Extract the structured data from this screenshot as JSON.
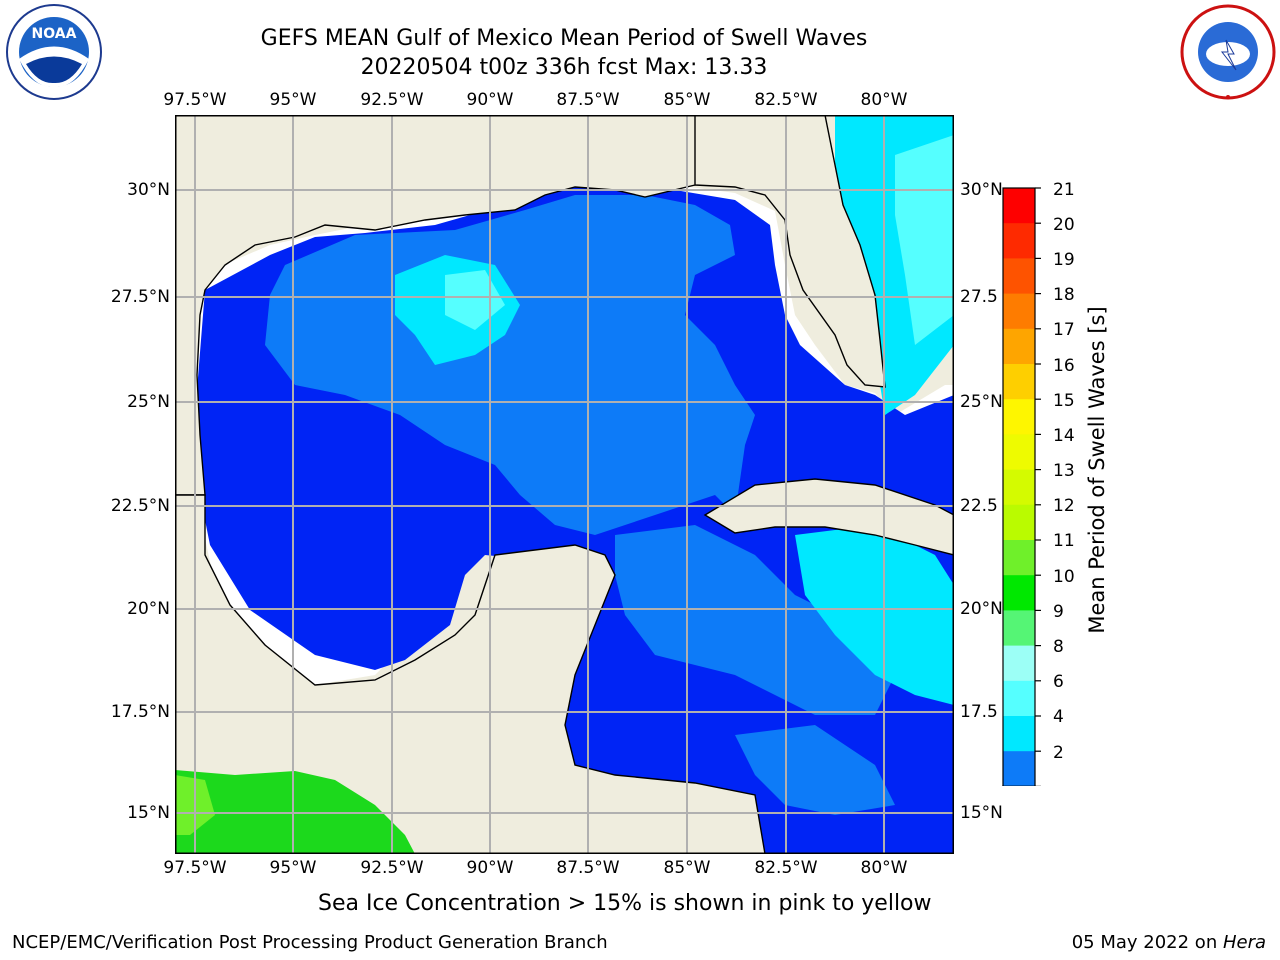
{
  "header": {
    "title_line1": "GEFS MEAN Gulf of Mexico Mean Period of Swell Waves",
    "title_line2": "20220504 t00z 336h fcst   Max: 13.33"
  },
  "logos": {
    "left": {
      "name": "noaa-logo",
      "text": "NOAA",
      "ring_text": "NATIONAL OCEANIC AND ATMOSPHERIC ADMINISTRATION · U.S. DEPARTMENT OF COMMERCE"
    },
    "right": {
      "name": "nws-logo",
      "ring_text": "NATIONAL WEATHER SERVICE"
    }
  },
  "map": {
    "x_tick_labels": [
      "97.5°W",
      "95°W",
      "92.5°W",
      "90°W",
      "87.5°W",
      "85°W",
      "82.5°W",
      "80°W"
    ],
    "y_tick_labels_left": [
      "30°N",
      "27.5°N",
      "25°N",
      "22.5°N",
      "20°N",
      "17.5°N",
      "15°N"
    ],
    "y_tick_labels_right": [
      "30°N",
      "27.5",
      "25°N",
      "22.5",
      "20°N",
      "17.5",
      "15°N"
    ],
    "colors": {
      "land": "#efedde",
      "ocean_low": "#0024f5",
      "ocean_mid": "#0d7bf8",
      "ocean_high": "#00e8ff",
      "ocean_vhigh": "#55ffff",
      "pacific": "#1cd91c",
      "grid": "#b0b0b0"
    }
  },
  "colorbar": {
    "label": "Mean Period of Swell Waves [s]",
    "tick_labels": [
      "21",
      "20",
      "19",
      "18",
      "17",
      "16",
      "15",
      "14",
      "13",
      "12",
      "11",
      "10",
      "9",
      "8",
      "6",
      "4",
      "2"
    ],
    "colors": [
      "#fe0000",
      "#fe2a00",
      "#fe5300",
      "#fe7c00",
      "#fea500",
      "#fecf00",
      "#fef600",
      "#eefb00",
      "#d4fb00",
      "#bafb00",
      "#6ff02a",
      "#00e800",
      "#55f575",
      "#9cfff6",
      "#55ffff",
      "#00e8ff",
      "#0d7bf8",
      "#0024f5"
    ]
  },
  "footer": {
    "subtitle": "Sea Ice Concentration > 15% is shown in pink to yellow",
    "left": "NCEP/EMC/Verification Post Processing Product Generation Branch",
    "right_date": "05 May 2022 on ",
    "right_machine": "Hera"
  }
}
